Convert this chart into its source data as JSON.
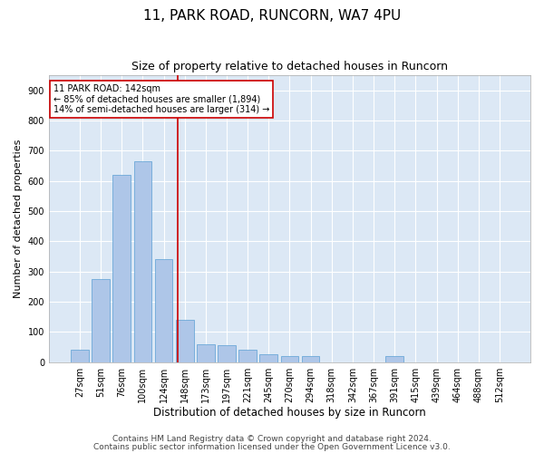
{
  "title1": "11, PARK ROAD, RUNCORN, WA7 4PU",
  "title2": "Size of property relative to detached houses in Runcorn",
  "xlabel": "Distribution of detached houses by size in Runcorn",
  "ylabel": "Number of detached properties",
  "categories": [
    "27sqm",
    "51sqm",
    "76sqm",
    "100sqm",
    "124sqm",
    "148sqm",
    "173sqm",
    "197sqm",
    "221sqm",
    "245sqm",
    "270sqm",
    "294sqm",
    "318sqm",
    "342sqm",
    "367sqm",
    "391sqm",
    "415sqm",
    "439sqm",
    "464sqm",
    "488sqm",
    "512sqm"
  ],
  "values": [
    40,
    275,
    620,
    665,
    340,
    140,
    60,
    55,
    40,
    25,
    20,
    20,
    0,
    0,
    0,
    20,
    0,
    0,
    0,
    0,
    0
  ],
  "bar_color": "#aec6e8",
  "bar_edge_color": "#5a9fd4",
  "vline_x_index": 4.67,
  "vline_color": "#cc0000",
  "annotation_text": "11 PARK ROAD: 142sqm\n← 85% of detached houses are smaller (1,894)\n14% of semi-detached houses are larger (314) →",
  "annotation_box_color": "white",
  "annotation_box_edge_color": "#cc0000",
  "ylim": [
    0,
    950
  ],
  "yticks": [
    0,
    100,
    200,
    300,
    400,
    500,
    600,
    700,
    800,
    900
  ],
  "background_color": "#dce8f5",
  "footer1": "Contains HM Land Registry data © Crown copyright and database right 2024.",
  "footer2": "Contains public sector information licensed under the Open Government Licence v3.0.",
  "title1_fontsize": 11,
  "title2_fontsize": 9,
  "xlabel_fontsize": 8.5,
  "ylabel_fontsize": 8,
  "tick_fontsize": 7,
  "footer_fontsize": 6.5,
  "annot_fontsize": 7
}
